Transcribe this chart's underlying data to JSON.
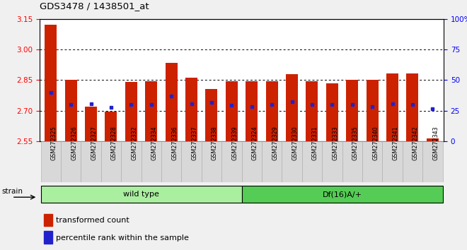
{
  "title": "GDS3478 / 1438501_at",
  "samples": [
    "GSM272325",
    "GSM272326",
    "GSM272327",
    "GSM272328",
    "GSM272332",
    "GSM272334",
    "GSM272336",
    "GSM272337",
    "GSM272338",
    "GSM272339",
    "GSM272324",
    "GSM272329",
    "GSM272330",
    "GSM272331",
    "GSM272333",
    "GSM272335",
    "GSM272340",
    "GSM272341",
    "GSM272342",
    "GSM272343"
  ],
  "bar_values": [
    3.12,
    2.85,
    2.72,
    2.695,
    2.84,
    2.845,
    2.935,
    2.862,
    2.805,
    2.845,
    2.845,
    2.845,
    2.878,
    2.845,
    2.832,
    2.852,
    2.852,
    2.882,
    2.882,
    2.565
  ],
  "blue_dot_values": [
    2.79,
    2.73,
    2.735,
    2.715,
    2.73,
    2.73,
    2.77,
    2.735,
    2.74,
    2.725,
    2.72,
    2.73,
    2.745,
    2.73,
    2.73,
    2.73,
    2.72,
    2.735,
    2.73,
    2.71
  ],
  "group_labels": [
    "wild type",
    "Df(16)A/+"
  ],
  "group_sizes": [
    10,
    10
  ],
  "ylim_left": [
    2.55,
    3.15
  ],
  "ylim_right": [
    0,
    100
  ],
  "yticks_left": [
    2.55,
    2.7,
    2.85,
    3.0,
    3.15
  ],
  "yticks_right": [
    0,
    25,
    50,
    75,
    100
  ],
  "bar_color": "#cc2200",
  "dot_color": "#2222cc",
  "group_color_wt": "#aaeea0",
  "group_color_df": "#55cc55",
  "tick_bg_color": "#d8d8d8",
  "plot_bg": "#ffffff",
  "fig_bg": "#f0f0f0",
  "legend_items": [
    "transformed count",
    "percentile rank within the sample"
  ],
  "strain_label": "strain"
}
